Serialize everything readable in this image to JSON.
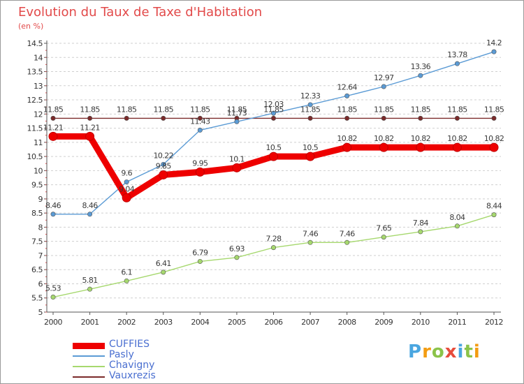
{
  "chart_data": {
    "type": "line",
    "title": "Evolution du Taux de Taxe d'Habitation",
    "subtitle": "(en %)",
    "x": [
      2000,
      2001,
      2002,
      2003,
      2004,
      2005,
      2006,
      2007,
      2008,
      2009,
      2010,
      2011,
      2012
    ],
    "ylim": [
      5,
      14.5
    ],
    "yticks": [
      "5",
      "5.5",
      "6",
      "6.5",
      "7",
      "7.5",
      "8",
      "8.5",
      "9",
      "9.5",
      "10",
      "10.5",
      "11",
      "11.5",
      "12",
      "12.5",
      "13",
      "13.5",
      "14",
      "14.5"
    ],
    "grid": "horizontal dashed",
    "legend_position": "bottom-left",
    "series": [
      {
        "name": "CUFFIES",
        "color": "#ee0000",
        "values": [
          11.21,
          11.21,
          9.04,
          9.85,
          9.95,
          10.1,
          10.5,
          10.5,
          10.82,
          10.82,
          10.82,
          10.82,
          10.82
        ],
        "labels": [
          "11.21",
          "11.21",
          "9.04",
          "9.85",
          "9.95",
          "10.1",
          "10.5",
          "10.5",
          "10.82",
          "10.82",
          "10.82",
          "10.82",
          "10.82"
        ]
      },
      {
        "name": "Pasly",
        "color": "#5b9bd5",
        "values": [
          8.46,
          8.46,
          9.6,
          10.22,
          11.43,
          11.73,
          12.03,
          12.33,
          12.64,
          12.97,
          13.36,
          13.78,
          14.2
        ],
        "labels": [
          "8.46",
          "8.46",
          "9.6",
          "10.22",
          "11.43",
          "11.73",
          "12.03",
          "12.33",
          "12.64",
          "12.97",
          "13.36",
          "13.78",
          "14.2"
        ]
      },
      {
        "name": "Chavigny",
        "color": "#a6d86e",
        "values": [
          5.53,
          5.81,
          6.1,
          6.41,
          6.79,
          6.93,
          7.28,
          7.46,
          7.46,
          7.65,
          7.84,
          8.04,
          8.44
        ],
        "labels": [
          "5.53",
          "5.81",
          "6.1",
          "6.41",
          "6.79",
          "6.93",
          "7.28",
          "7.46",
          "7.46",
          "7.65",
          "7.84",
          "8.04",
          "8.44"
        ]
      },
      {
        "name": "Vauxrezis",
        "color": "#7b2a2a",
        "values": [
          11.85,
          11.85,
          11.85,
          11.85,
          11.85,
          11.85,
          11.85,
          11.85,
          11.85,
          11.85,
          11.85,
          11.85,
          11.85
        ],
        "labels": [
          "11.85",
          "11.85",
          "11.85",
          "11.85",
          "11.85",
          "11.85",
          "11.85",
          "11.85",
          "11.85",
          "11.85",
          "11.85",
          "11.85",
          "11.85"
        ]
      }
    ]
  },
  "logo": {
    "letters": [
      "P",
      "r",
      "o",
      "x",
      "i",
      "t",
      "i"
    ],
    "colors": [
      "#4aa6e0",
      "#f39c12",
      "#8bc34a",
      "#e74c3c",
      "#4aa6e0",
      "#8bc34a",
      "#f39c12"
    ]
  }
}
